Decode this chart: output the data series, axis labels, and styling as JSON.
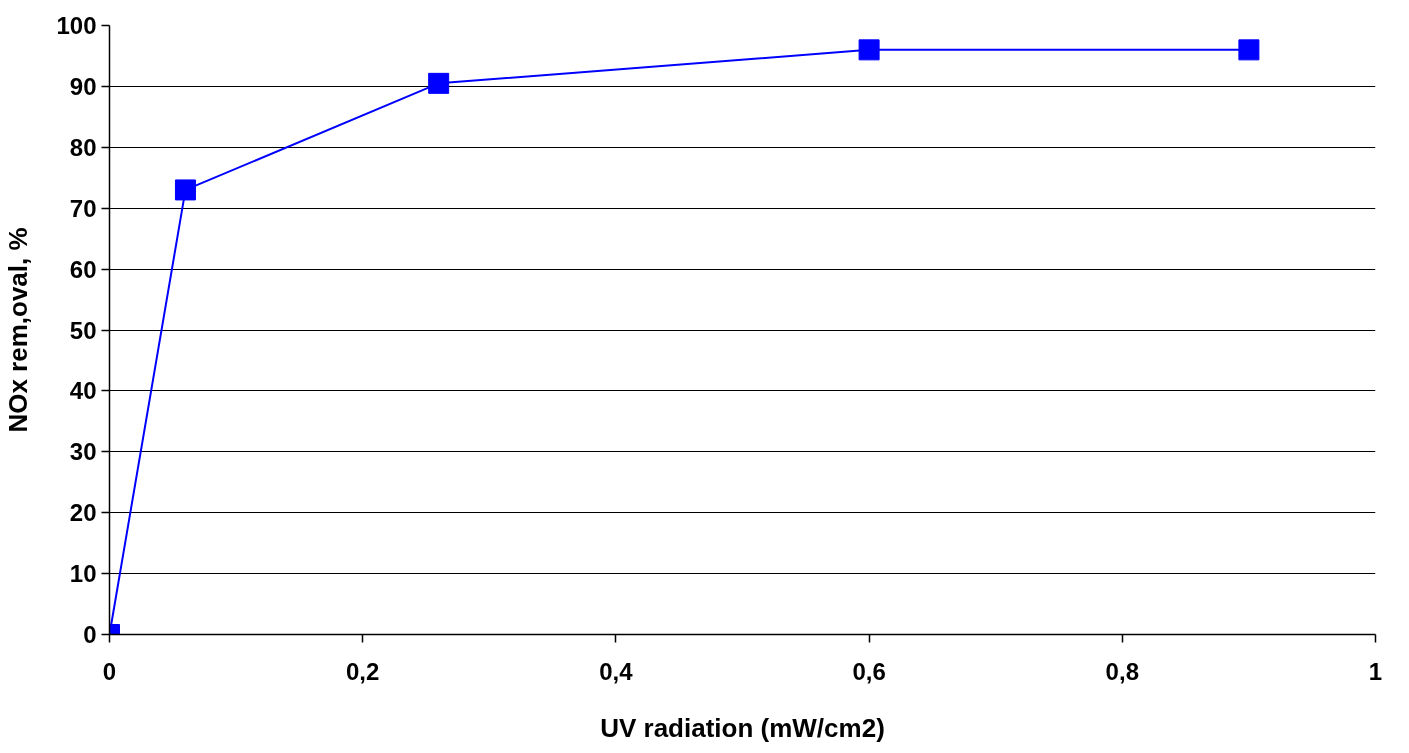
{
  "chart_data": {
    "type": "line",
    "xlabel": "UV radiation (mW/cm2)",
    "ylabel": "NOx rem,oval, %",
    "x": [
      0,
      0.06,
      0.26,
      0.6,
      0.9
    ],
    "series": [
      {
        "color": "#0000ff",
        "values": [
          0,
          73,
          90.5,
          96,
          96
        ]
      }
    ],
    "xlim": [
      0,
      1
    ],
    "ylim": [
      0,
      100
    ],
    "xticks": [
      0,
      {
        "value": 0.2,
        "label": "0,2"
      },
      {
        "value": 0.4,
        "label": "0,4"
      },
      {
        "value": 0.6,
        "label": "0,6"
      },
      {
        "value": 0.8,
        "label": "0,8"
      },
      1
    ],
    "yticks": [
      0,
      10,
      20,
      30,
      40,
      50,
      60,
      70,
      80,
      90,
      100
    ],
    "grid": "y",
    "marker": "square",
    "line_style": "solid"
  }
}
